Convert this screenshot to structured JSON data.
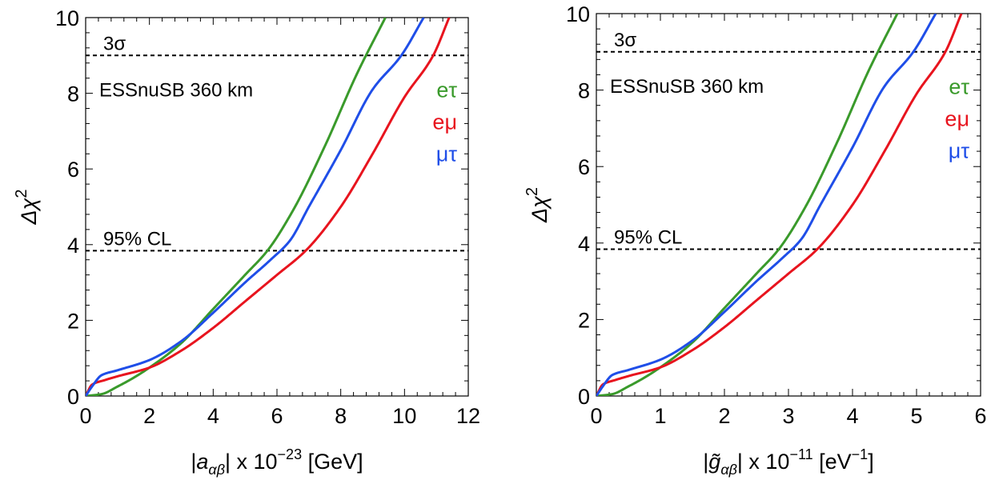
{
  "colors": {
    "e_tau": "#3a9a2b",
    "e_mu": "#e8141e",
    "mu_tau": "#1f4ee8",
    "reference": "#000000"
  },
  "chart_data": [
    {
      "type": "line",
      "title": "",
      "xlabel_parts": [
        "|",
        "a",
        "αβ",
        "| x 10",
        "−23",
        " [GeV]"
      ],
      "ylabel_parts": [
        "Δχ",
        "2"
      ],
      "xlim": [
        0,
        12
      ],
      "ylim": [
        0,
        10
      ],
      "x_ticks": [
        0,
        2,
        4,
        6,
        8,
        10,
        12
      ],
      "y_ticks": [
        0,
        2,
        4,
        6,
        8,
        10
      ],
      "grid": false,
      "reference_lines": [
        {
          "y": 9.0,
          "label": "3σ"
        },
        {
          "y": 3.84,
          "label": "95% CL"
        }
      ],
      "annotation": "ESSnuSB 360 km",
      "legend_position": "right",
      "series": [
        {
          "name": "eτ",
          "color_key": "e_tau",
          "x": [
            0,
            0.5,
            1.0,
            1.5,
            2.0,
            3.0,
            4.0,
            5.0,
            5.7,
            6.5,
            7.5,
            8.5,
            9.4
          ],
          "y": [
            0,
            0.05,
            0.25,
            0.48,
            0.75,
            1.4,
            2.3,
            3.2,
            3.84,
            4.9,
            6.6,
            8.5,
            10.0
          ]
        },
        {
          "name": "eμ",
          "color_key": "e_mu",
          "x": [
            0,
            0.2,
            0.6,
            1.0,
            2.0,
            3.0,
            4.0,
            5.0,
            6.0,
            6.9,
            8.0,
            9.0,
            10.0,
            10.9,
            11.4
          ],
          "y": [
            0,
            0.3,
            0.42,
            0.52,
            0.75,
            1.2,
            1.8,
            2.5,
            3.2,
            3.84,
            5.0,
            6.4,
            7.9,
            9.0,
            10.0
          ]
        },
        {
          "name": "μτ",
          "color_key": "mu_tau",
          "x": [
            0,
            0.2,
            0.5,
            1.0,
            2.0,
            3.0,
            4.0,
            5.0,
            5.8,
            6.4,
            7.0,
            8.0,
            9.0,
            9.9,
            10.6
          ],
          "y": [
            0,
            0.25,
            0.55,
            0.68,
            0.95,
            1.45,
            2.2,
            3.0,
            3.6,
            4.1,
            5.0,
            6.5,
            8.1,
            9.0,
            10.0
          ]
        }
      ]
    },
    {
      "type": "line",
      "title": "",
      "xlabel_parts": [
        "|",
        "g̃",
        "αβ",
        "| x 10",
        "−11",
        " [eV",
        "−1",
        "]"
      ],
      "ylabel_parts": [
        "Δχ",
        "2"
      ],
      "xlim": [
        0,
        6
      ],
      "ylim": [
        0,
        10
      ],
      "x_ticks": [
        0,
        1,
        2,
        3,
        4,
        5,
        6
      ],
      "y_ticks": [
        0,
        2,
        4,
        6,
        8,
        10
      ],
      "grid": false,
      "reference_lines": [
        {
          "y": 9.0,
          "label": "3σ"
        },
        {
          "y": 3.84,
          "label": "95% CL"
        }
      ],
      "annotation": "ESSnuSB 360 km",
      "legend_position": "right",
      "series": [
        {
          "name": "eτ",
          "color_key": "e_tau",
          "x": [
            0,
            0.25,
            0.5,
            0.75,
            1.0,
            1.5,
            2.0,
            2.5,
            2.85,
            3.25,
            3.75,
            4.25,
            4.7
          ],
          "y": [
            0,
            0.05,
            0.25,
            0.48,
            0.75,
            1.4,
            2.3,
            3.2,
            3.84,
            4.9,
            6.6,
            8.5,
            10.0
          ]
        },
        {
          "name": "eμ",
          "color_key": "e_mu",
          "x": [
            0,
            0.1,
            0.3,
            0.5,
            1.0,
            1.5,
            2.0,
            2.5,
            3.0,
            3.45,
            4.0,
            4.5,
            5.0,
            5.45,
            5.7
          ],
          "y": [
            0,
            0.3,
            0.42,
            0.52,
            0.75,
            1.2,
            1.8,
            2.5,
            3.2,
            3.84,
            5.0,
            6.4,
            7.9,
            9.0,
            10.0
          ]
        },
        {
          "name": "μτ",
          "color_key": "mu_tau",
          "x": [
            0,
            0.1,
            0.25,
            0.5,
            1.0,
            1.5,
            2.0,
            2.5,
            2.9,
            3.2,
            3.5,
            4.0,
            4.5,
            4.95,
            5.3
          ],
          "y": [
            0,
            0.25,
            0.55,
            0.68,
            0.95,
            1.45,
            2.2,
            3.0,
            3.6,
            4.1,
            5.0,
            6.5,
            8.1,
            9.0,
            10.0
          ]
        }
      ]
    }
  ]
}
